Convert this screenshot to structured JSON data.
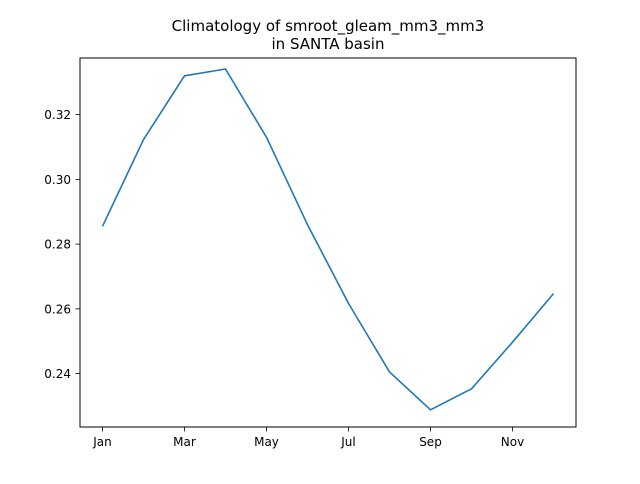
{
  "chart_data": {
    "type": "line",
    "title_lines": [
      "Climatology of smroot_gleam_mm3_mm3",
      "in SANTA basin"
    ],
    "xlabel": "",
    "ylabel": "",
    "x": [
      "Jan",
      "Feb",
      "Mar",
      "Apr",
      "May",
      "Jun",
      "Jul",
      "Aug",
      "Sep",
      "Oct",
      "Nov",
      "Dec"
    ],
    "x_ticks": [
      "Jan",
      "Mar",
      "May",
      "Jul",
      "Sep",
      "Nov"
    ],
    "ylim": [
      0.2235,
      0.3375
    ],
    "y_ticks": [
      "0.24",
      "0.26",
      "0.28",
      "0.30",
      "0.32"
    ],
    "grid": false,
    "series": [
      {
        "color": "#1f77b4",
        "values": [
          0.2855,
          0.3123,
          0.332,
          0.3341,
          0.313,
          0.286,
          0.2617,
          0.2405,
          0.2288,
          0.2353,
          0.2497,
          0.2647
        ]
      }
    ]
  }
}
